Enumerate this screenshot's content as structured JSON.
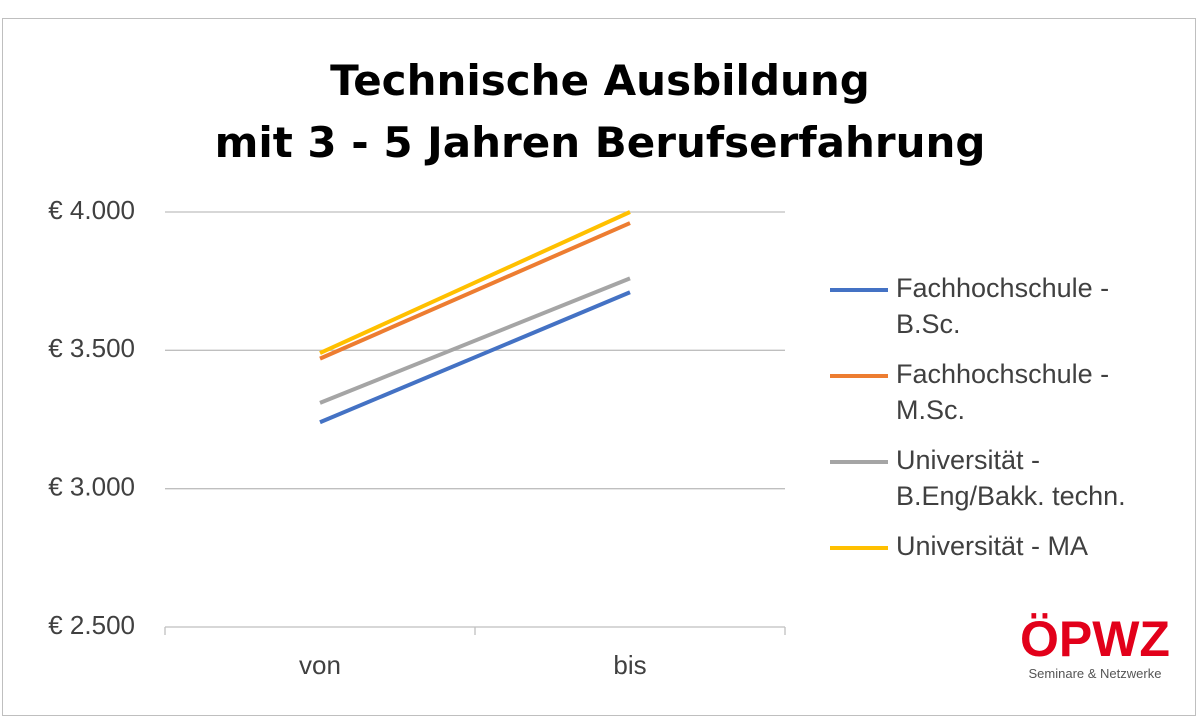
{
  "chart_data": {
    "type": "line",
    "title": "Technische Ausbildung\nmit 3 - 5 Jahren Berufserfahrung",
    "categories": [
      "von",
      "bis"
    ],
    "series": [
      {
        "name": "Fachhochschule - B.Sc.",
        "color": "#4472c4",
        "values": [
          3240,
          3710
        ]
      },
      {
        "name": "Fachhochschule - M.Sc.",
        "color": "#ed7d31",
        "values": [
          3470,
          3960
        ]
      },
      {
        "name": "Universität - B.Eng/Bakk. techn.",
        "color": "#a5a5a5",
        "values": [
          3310,
          3760
        ]
      },
      {
        "name": "Universität - MA",
        "color": "#ffc000",
        "values": [
          3490,
          4000
        ]
      }
    ],
    "ylim": [
      2500,
      4000
    ],
    "yticks": [
      {
        "value": 2500,
        "label": "€ 2.500"
      },
      {
        "value": 3000,
        "label": "€ 3.000"
      },
      {
        "value": 3500,
        "label": "€ 3.500"
      },
      {
        "value": 4000,
        "label": "€ 4.000"
      }
    ],
    "grid": true,
    "legend": "right"
  },
  "logo": {
    "text": "ÖPWZ",
    "tagline": "Seminare & Netzwerke"
  }
}
